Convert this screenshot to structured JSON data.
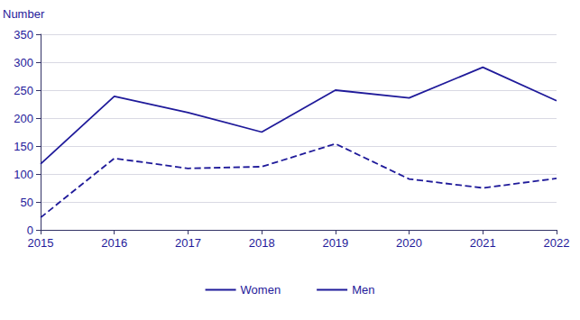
{
  "chart_data": {
    "type": "line",
    "y_label": "Number",
    "categories": [
      "2015",
      "2016",
      "2017",
      "2018",
      "2019",
      "2020",
      "2021",
      "2022"
    ],
    "series": [
      {
        "name": "Women",
        "color": "#1f1a9a",
        "line_style": "solid",
        "values": [
          118,
          239,
          210,
          175,
          250,
          236,
          291,
          231
        ]
      },
      {
        "name": "Men",
        "color": "#1f1a9a",
        "line_style": "dashed",
        "values": [
          22,
          128,
          110,
          113,
          154,
          91,
          75,
          92
        ]
      }
    ],
    "ylim": [
      0,
      350
    ],
    "yticks": [
      0,
      50,
      100,
      150,
      200,
      250,
      300,
      350
    ],
    "grid": true,
    "legend": "bottom"
  }
}
